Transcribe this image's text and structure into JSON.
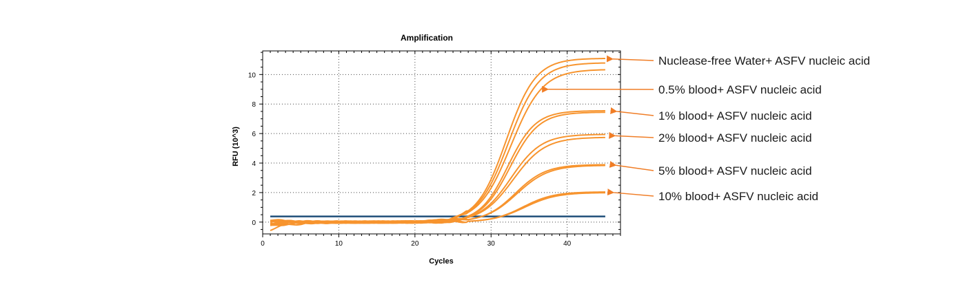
{
  "chart_data": {
    "type": "line",
    "title": "Amplification",
    "xlabel": "Cycles",
    "ylabel": "RFU (10^3)",
    "xlim": [
      0,
      47
    ],
    "ylim": [
      -0.8,
      11.6
    ],
    "xticks": [
      0,
      10,
      20,
      30,
      40
    ],
    "yticks": [
      0,
      2,
      4,
      6,
      8,
      10
    ],
    "grid": "dotted",
    "curve_color": "#F7942E",
    "threshold": {
      "value": 0.38,
      "color": "#1F4E79"
    },
    "annotation_color": "#F07D26",
    "series": [
      {
        "name": "Nuclease-free Water+ ASFV nucleic acid",
        "plateau": 11.1,
        "midpoint": 32.0,
        "slope": 0.52,
        "start": -0.3
      },
      {
        "name": "Nuclease-free Water+ ASFV nucleic acid",
        "plateau": 10.8,
        "midpoint": 32.3,
        "slope": 0.5,
        "start": -0.1
      },
      {
        "name": "0.5% blood+ ASFV nucleic acid",
        "plateau": 10.35,
        "midpoint": 32.6,
        "slope": 0.48,
        "start": 0.1
      },
      {
        "name": "1% blood+ ASFV nucleic acid",
        "plateau": 7.55,
        "midpoint": 32.2,
        "slope": 0.55,
        "start": -0.5
      },
      {
        "name": "1% blood+ ASFV nucleic acid",
        "plateau": 7.45,
        "midpoint": 32.5,
        "slope": 0.53,
        "start": 0.15
      },
      {
        "name": "2% blood+ ASFV nucleic acid",
        "plateau": 5.95,
        "midpoint": 32.6,
        "slope": 0.5,
        "start": -0.2
      },
      {
        "name": "2% blood+ ASFV nucleic acid",
        "plateau": 5.75,
        "midpoint": 32.9,
        "slope": 0.48,
        "start": 0.05
      },
      {
        "name": "5% blood+ ASFV nucleic acid",
        "plateau": 3.9,
        "midpoint": 33.2,
        "slope": 0.5,
        "start": -0.15
      },
      {
        "name": "5% blood+ ASFV nucleic acid",
        "plateau": 3.85,
        "midpoint": 33.4,
        "slope": 0.48,
        "start": 0.1
      },
      {
        "name": "10% blood+ ASFV nucleic acid",
        "plateau": 2.05,
        "midpoint": 34.2,
        "slope": 0.5,
        "start": -0.1
      },
      {
        "name": "10% blood+ ASFV nucleic acid",
        "plateau": 2.0,
        "midpoint": 34.4,
        "slope": 0.48,
        "start": 0.05
      }
    ],
    "annotations": [
      {
        "label": "Nuclease-free Water+ ASFV nucleic acid",
        "target_x": 45.1,
        "target_y": 11.05
      },
      {
        "label": "0.5% blood+ ASFV nucleic acid",
        "target_x": 36.6,
        "target_y": 9.0
      },
      {
        "label": "1% blood+ ASFV nucleic acid",
        "target_x": 45.6,
        "target_y": 7.5
      },
      {
        "label": "2% blood+ ASFV nucleic acid",
        "target_x": 45.4,
        "target_y": 5.85
      },
      {
        "label": "5% blood+ ASFV nucleic acid",
        "target_x": 45.5,
        "target_y": 3.85
      },
      {
        "label": "10% blood+ ASFV nucleic acid",
        "target_x": 45.2,
        "target_y": 2.0
      }
    ]
  }
}
